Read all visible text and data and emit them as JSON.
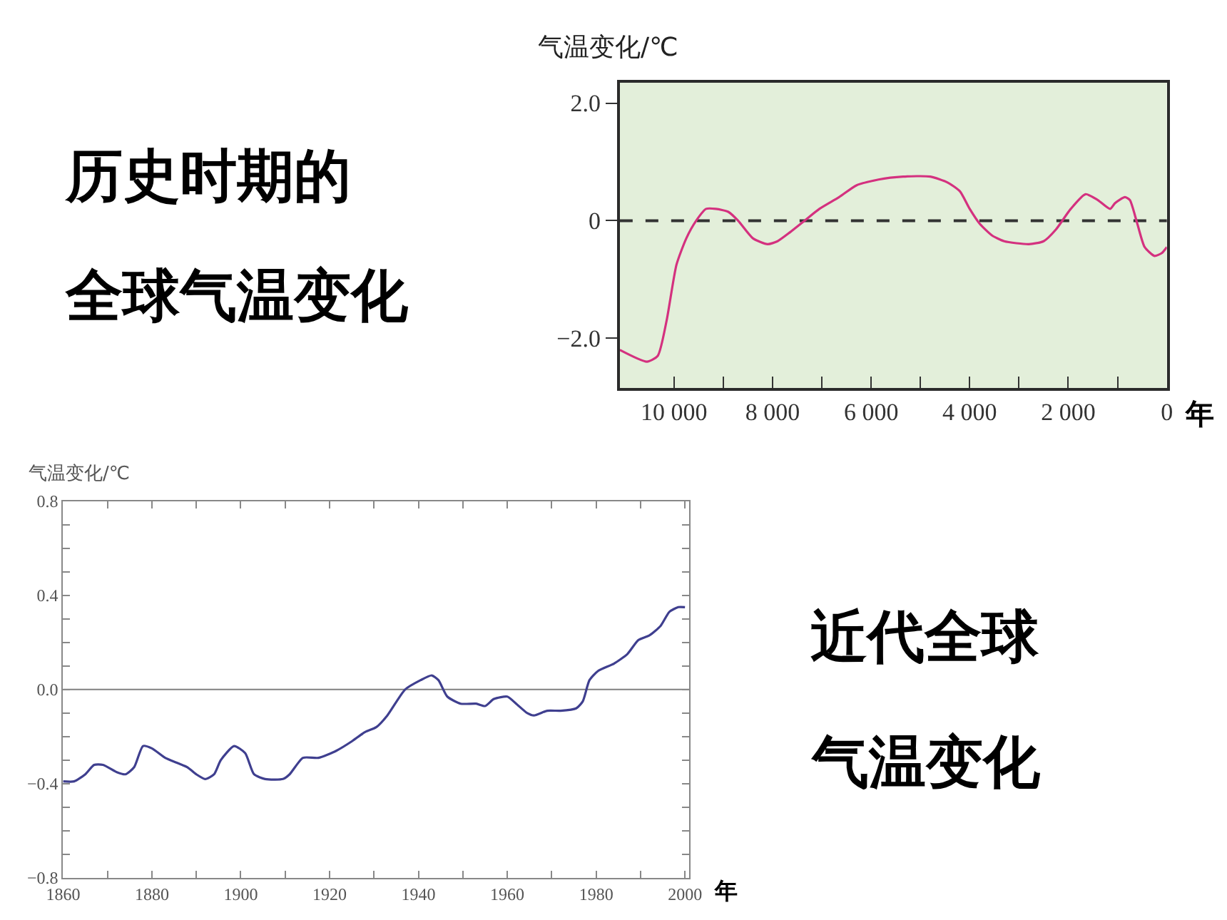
{
  "chart_data": [
    {
      "type": "line",
      "title": "历史时期的全球气温变化",
      "ylabel": "气温变化/℃",
      "xlabel": "年",
      "x": [
        11100,
        10550,
        10330,
        10150,
        9950,
        9750,
        9550,
        9350,
        9150,
        8900,
        8700,
        8400,
        8100,
        7900,
        7650,
        7350,
        7050,
        6650,
        6300,
        5850,
        5350,
        4800,
        4450,
        4200,
        4000,
        3800,
        3550,
        3300,
        2800,
        2500,
        2250,
        1950,
        1650,
        1400,
        1150,
        1050,
        850,
        750,
        600,
        450,
        250,
        100,
        0
      ],
      "series": [
        {
          "color": "#d4317f",
          "values": [
            -2.2,
            -2.4,
            -2.3,
            -1.7,
            -0.75,
            -0.3,
            0.0,
            0.2,
            0.2,
            0.15,
            0.0,
            -0.3,
            -0.4,
            -0.35,
            -0.2,
            0.0,
            0.2,
            0.4,
            0.6,
            0.7,
            0.75,
            0.75,
            0.65,
            0.5,
            0.2,
            -0.05,
            -0.25,
            -0.35,
            -0.4,
            -0.35,
            -0.15,
            0.2,
            0.45,
            0.35,
            0.2,
            0.3,
            0.4,
            0.35,
            -0.05,
            -0.45,
            -0.6,
            -0.55,
            -0.45
          ]
        }
      ],
      "xlim": [
        11100,
        0
      ],
      "xticks": [
        {
          "value": 10000,
          "label": "10 000"
        },
        {
          "value": 9000,
          "label": null
        },
        {
          "value": 8000,
          "label": "8 000"
        },
        {
          "value": 7000,
          "label": null
        },
        {
          "value": 6000,
          "label": "6 000"
        },
        {
          "value": 5000,
          "label": null
        },
        {
          "value": 4000,
          "label": "4 000"
        },
        {
          "value": 3000,
          "label": null
        },
        {
          "value": 2000,
          "label": "2 000"
        },
        {
          "value": 1000,
          "label": null
        },
        0
      ],
      "ylim": [
        -2.85,
        2.35
      ],
      "yticks": [
        {
          "value": 2,
          "label": "2.0"
        },
        0,
        {
          "value": -2,
          "label": "−2.0"
        }
      ],
      "ref_lines": [
        {
          "axis": "y",
          "value": 0,
          "line_style": "dashed",
          "color": "#333333"
        }
      ]
    },
    {
      "type": "line",
      "annotations": [
        "近代全球气温变化"
      ],
      "ylabel": "气温变化/℃",
      "xlabel": "年",
      "x": [
        1860,
        1862.5,
        1865,
        1867,
        1869,
        1872,
        1874,
        1876,
        1878,
        1880,
        1883,
        1885.5,
        1888,
        1890,
        1892,
        1894,
        1895.5,
        1898.5,
        1901,
        1903,
        1905.5,
        1909.5,
        1911,
        1914,
        1917.5,
        1921.5,
        1925,
        1928,
        1930.5,
        1933,
        1937,
        1940.5,
        1943,
        1944.5,
        1946.5,
        1949.5,
        1953,
        1955,
        1957,
        1960,
        1962,
        1964.5,
        1966,
        1969,
        1972,
        1975.5,
        1977,
        1978.5,
        1980.5,
        1984,
        1987,
        1989.5,
        1992,
        1994.5,
        1996.5,
        1998.5,
        2000
      ],
      "series": [
        {
          "color": "#3f3f8f",
          "values": [
            -0.39,
            -0.39,
            -0.36,
            -0.32,
            -0.32,
            -0.35,
            -0.36,
            -0.33,
            -0.24,
            -0.25,
            -0.29,
            -0.31,
            -0.33,
            -0.36,
            -0.38,
            -0.36,
            -0.3,
            -0.24,
            -0.27,
            -0.36,
            -0.38,
            -0.38,
            -0.36,
            -0.29,
            -0.29,
            -0.26,
            -0.22,
            -0.18,
            -0.16,
            -0.11,
            0.0,
            0.04,
            0.06,
            0.04,
            -0.03,
            -0.06,
            -0.06,
            -0.07,
            -0.04,
            -0.03,
            -0.06,
            -0.1,
            -0.11,
            -0.09,
            -0.09,
            -0.08,
            -0.05,
            0.04,
            0.08,
            0.11,
            0.15,
            0.21,
            0.23,
            0.27,
            0.33,
            0.35,
            0.35
          ]
        }
      ],
      "xlim": [
        1860,
        2001
      ],
      "xticks": [
        1860,
        {
          "value": 1870,
          "label": null
        },
        1880,
        {
          "value": 1890,
          "label": null
        },
        1900,
        {
          "value": 1910,
          "label": null
        },
        1920,
        {
          "value": 1930,
          "label": null
        },
        1940,
        {
          "value": 1950,
          "label": null
        },
        1960,
        {
          "value": 1970,
          "label": null
        },
        1980,
        {
          "value": 1990,
          "label": null
        },
        2000
      ],
      "ylim": [
        -0.8,
        0.8
      ],
      "yticks": [
        0.8,
        {
          "value": 0.7,
          "label": null
        },
        {
          "value": 0.6,
          "label": null
        },
        {
          "value": 0.5,
          "label": null
        },
        0.4,
        {
          "value": 0.3,
          "label": null
        },
        {
          "value": 0.2,
          "label": null
        },
        {
          "value": 0.1,
          "label": null
        },
        {
          "value": 0,
          "label": "0.0"
        },
        {
          "value": -0.1,
          "label": null
        },
        {
          "value": -0.2,
          "label": null
        },
        {
          "value": -0.3,
          "label": null
        },
        {
          "value": -0.4,
          "label": "−0.4"
        },
        {
          "value": -0.5,
          "label": null
        },
        {
          "value": -0.6,
          "label": null
        },
        {
          "value": -0.7,
          "label": null
        },
        {
          "value": -0.8,
          "label": "−0.8"
        }
      ],
      "ref_lines": [
        {
          "axis": "y",
          "value": 0,
          "color": "#808080"
        }
      ]
    }
  ]
}
